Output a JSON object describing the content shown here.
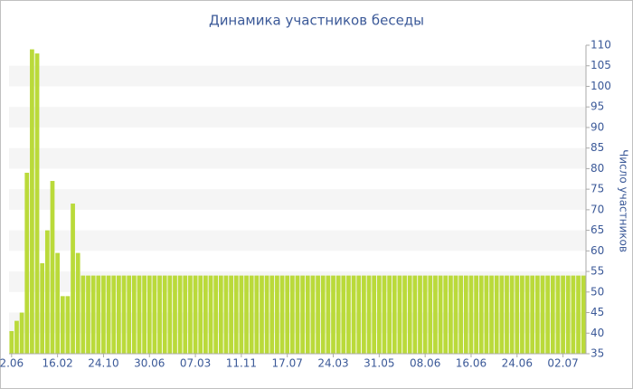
{
  "chart_data": {
    "type": "bar",
    "title": "Динамика участников беседы",
    "y_axis_label": "Число участников",
    "categories": [
      "2.06",
      null,
      null,
      null,
      null,
      null,
      null,
      null,
      null,
      "16.02",
      null,
      null,
      null,
      null,
      null,
      null,
      null,
      null,
      "24.10",
      null,
      null,
      null,
      null,
      null,
      null,
      null,
      null,
      "30.06",
      null,
      null,
      null,
      null,
      null,
      null,
      null,
      null,
      "07.03",
      null,
      null,
      null,
      null,
      null,
      null,
      null,
      null,
      "11.11",
      null,
      null,
      null,
      null,
      null,
      null,
      null,
      null,
      "17.07",
      null,
      null,
      null,
      null,
      null,
      null,
      null,
      null,
      "24.03",
      null,
      null,
      null,
      null,
      null,
      null,
      null,
      null,
      "31.05",
      null,
      null,
      null,
      null,
      null,
      null,
      null,
      null,
      "08.06",
      null,
      null,
      null,
      null,
      null,
      null,
      null,
      null,
      "16.06",
      null,
      null,
      null,
      null,
      null,
      null,
      null,
      null,
      "24.06",
      null,
      null,
      null,
      null,
      null,
      null,
      null,
      null,
      "02.07",
      null,
      null,
      null,
      null
    ],
    "values": [
      40.5,
      43,
      45,
      79,
      109,
      108,
      57,
      65,
      77,
      59.5,
      49,
      49,
      71.5,
      59.5,
      54,
      54,
      54,
      54,
      54,
      54,
      54,
      54,
      54,
      54,
      54,
      54,
      54,
      54,
      54,
      54,
      54,
      54,
      54,
      54,
      54,
      54,
      54,
      54,
      54,
      54,
      54,
      54,
      54,
      54,
      54,
      54,
      54,
      54,
      54,
      54,
      54,
      54,
      54,
      54,
      54,
      54,
      54,
      54,
      54,
      54,
      54,
      54,
      54,
      54,
      54,
      54,
      54,
      54,
      54,
      54,
      54,
      54,
      54,
      54,
      54,
      54,
      54,
      54,
      54,
      54,
      54,
      54,
      54,
      54,
      54,
      54,
      54,
      54,
      54,
      54,
      54,
      54,
      54,
      54,
      54,
      54,
      54,
      54,
      54,
      54,
      54,
      54,
      54,
      54,
      54,
      54,
      54,
      54,
      54,
      54,
      54,
      54,
      54
    ],
    "color": "#bada3a",
    "ylim": [
      35,
      110
    ],
    "yticks": [
      35,
      40,
      45,
      50,
      55,
      60,
      65,
      70,
      75,
      80,
      85,
      90,
      95,
      100,
      105,
      110
    ],
    "grid": "bands"
  }
}
